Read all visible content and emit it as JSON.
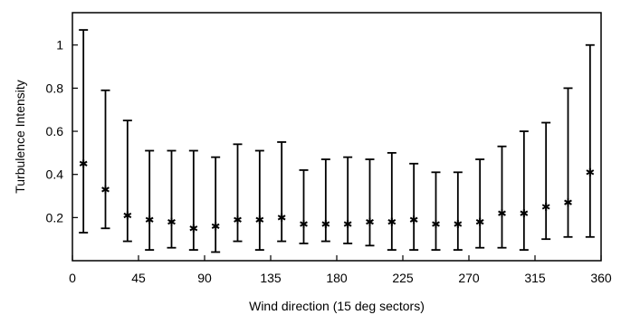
{
  "chart_data": {
    "type": "scatter",
    "title": "",
    "xlabel": "Wind direction (15 deg sectors)",
    "ylabel": "Turbulence Intensity",
    "xlim": [
      0,
      360
    ],
    "ylim": [
      0,
      1.15
    ],
    "grid": false,
    "x_ticks": [
      "0",
      "45",
      "90",
      "135",
      "180",
      "225",
      "270",
      "315",
      "360"
    ],
    "x_tick_values": [
      0,
      45,
      90,
      135,
      180,
      225,
      270,
      315,
      360
    ],
    "y_ticks": [
      "0.2",
      "0.4",
      "0.6",
      "0.8",
      "1"
    ],
    "y_tick_values": [
      0.2,
      0.4,
      0.6,
      0.8,
      1.0
    ],
    "series": [
      {
        "marker": "asterisk",
        "color": "#000000",
        "points": [
          {
            "x": 7.5,
            "y": 0.45,
            "low": 0.13,
            "high": 1.07
          },
          {
            "x": 22.5,
            "y": 0.33,
            "low": 0.15,
            "high": 0.79
          },
          {
            "x": 37.5,
            "y": 0.21,
            "low": 0.09,
            "high": 0.65
          },
          {
            "x": 52.5,
            "y": 0.19,
            "low": 0.05,
            "high": 0.51
          },
          {
            "x": 67.5,
            "y": 0.18,
            "low": 0.06,
            "high": 0.51
          },
          {
            "x": 82.5,
            "y": 0.15,
            "low": 0.05,
            "high": 0.51
          },
          {
            "x": 97.5,
            "y": 0.16,
            "low": 0.04,
            "high": 0.48
          },
          {
            "x": 112.5,
            "y": 0.19,
            "low": 0.09,
            "high": 0.54
          },
          {
            "x": 127.5,
            "y": 0.19,
            "low": 0.05,
            "high": 0.51
          },
          {
            "x": 142.5,
            "y": 0.2,
            "low": 0.09,
            "high": 0.55
          },
          {
            "x": 157.5,
            "y": 0.17,
            "low": 0.08,
            "high": 0.42
          },
          {
            "x": 172.5,
            "y": 0.17,
            "low": 0.09,
            "high": 0.47
          },
          {
            "x": 187.5,
            "y": 0.17,
            "low": 0.08,
            "high": 0.48
          },
          {
            "x": 202.5,
            "y": 0.18,
            "low": 0.07,
            "high": 0.47
          },
          {
            "x": 217.5,
            "y": 0.18,
            "low": 0.05,
            "high": 0.5
          },
          {
            "x": 232.5,
            "y": 0.19,
            "low": 0.05,
            "high": 0.45
          },
          {
            "x": 247.5,
            "y": 0.17,
            "low": 0.05,
            "high": 0.41
          },
          {
            "x": 262.5,
            "y": 0.17,
            "low": 0.05,
            "high": 0.41
          },
          {
            "x": 277.5,
            "y": 0.18,
            "low": 0.06,
            "high": 0.47
          },
          {
            "x": 292.5,
            "y": 0.22,
            "low": 0.06,
            "high": 0.53
          },
          {
            "x": 307.5,
            "y": 0.22,
            "low": 0.05,
            "high": 0.6
          },
          {
            "x": 322.5,
            "y": 0.25,
            "low": 0.1,
            "high": 0.64
          },
          {
            "x": 337.5,
            "y": 0.27,
            "low": 0.11,
            "high": 0.8
          },
          {
            "x": 352.5,
            "y": 0.41,
            "low": 0.11,
            "high": 1.0
          }
        ]
      }
    ]
  }
}
